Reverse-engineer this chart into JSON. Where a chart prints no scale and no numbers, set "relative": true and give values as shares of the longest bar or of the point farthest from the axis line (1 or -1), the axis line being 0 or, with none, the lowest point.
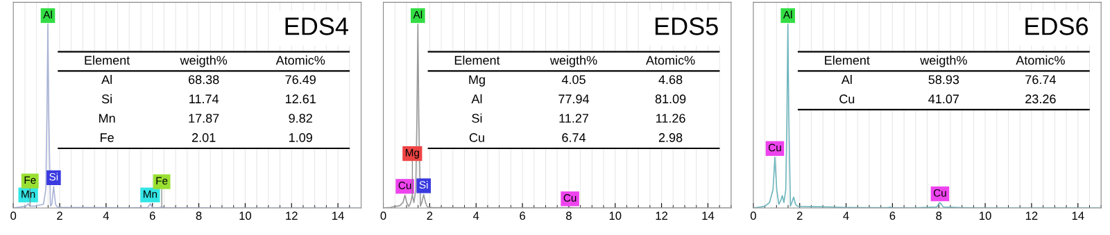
{
  "chart_data": [
    {
      "type": "line",
      "title": "EDS4",
      "relative": true,
      "grid": true,
      "tick_labels": "x",
      "xlim": [
        0,
        15
      ],
      "xticks": [
        0,
        2,
        4,
        6,
        8,
        10,
        12,
        14
      ],
      "x": [
        0,
        0.3,
        0.55,
        0.64,
        0.72,
        0.9,
        1.1,
        1.3,
        1.4,
        1.45,
        1.49,
        1.53,
        1.6,
        1.66,
        1.74,
        1.82,
        1.9,
        2.1,
        3,
        4,
        5,
        5.8,
        5.9,
        6.0,
        6.3,
        6.4,
        6.5,
        7,
        8,
        9,
        10,
        11,
        12,
        13,
        14,
        15
      ],
      "series": [
        {
          "color": "#a9b3d6",
          "values": [
            0,
            0.005,
            0.01,
            0.023,
            0.01,
            0.01,
            0.015,
            0.02,
            0.1,
            0.5,
            1,
            0.5,
            0.01,
            0.02,
            0.117,
            0.02,
            0.005,
            0.003,
            0.003,
            0.002,
            0.001,
            0.003,
            0.023,
            0.003,
            0.002,
            0.006,
            0.002,
            0.001,
            0.001,
            0,
            0,
            0,
            0,
            0,
            0,
            0
          ]
        }
      ],
      "annotations": [
        "Element",
        "weigth%",
        "Atomic%",
        "Al",
        "68.38",
        "76.49",
        "Si",
        "11.74",
        "12.61",
        "Mn",
        "17.87",
        "9.82",
        "Fe",
        "2.01",
        "1.09",
        {
          "text": "Al",
          "x": 1.49,
          "y": 1
        },
        {
          "text": "Si",
          "x": 1.74,
          "y": 0.117
        },
        {
          "text": "Mn",
          "x": 0.64,
          "y": 0.023
        },
        {
          "text": "Fe",
          "x": 0.72,
          "y": 0.01
        },
        {
          "text": "Mn",
          "x": 5.9,
          "y": 0.023
        },
        {
          "text": "Fe",
          "x": 6.4,
          "y": 0.006
        }
      ]
    },
    {
      "type": "line",
      "title": "EDS5",
      "relative": true,
      "grid": true,
      "tick_labels": "x",
      "xlim": [
        0,
        15
      ],
      "xticks": [
        0,
        2,
        4,
        6,
        8,
        10,
        12,
        14
      ],
      "x": [
        0,
        0.3,
        0.5,
        0.7,
        0.85,
        0.93,
        1.01,
        1.1,
        1.18,
        1.25,
        1.32,
        1.4,
        1.45,
        1.49,
        1.53,
        1.6,
        1.66,
        1.74,
        1.82,
        1.9,
        2.1,
        3,
        4,
        5,
        6,
        7,
        7.9,
        8.05,
        8.2,
        9,
        10,
        11,
        12,
        13,
        14,
        15
      ],
      "series": [
        {
          "color": "#9a9a9a",
          "values": [
            0,
            0.003,
            0.008,
            0.012,
            0.03,
            0.07,
            0.03,
            0.008,
            0.03,
            0.07,
            0.03,
            0.1,
            0.5,
            1,
            0.5,
            0.01,
            0.03,
            0.073,
            0.03,
            0.005,
            0.003,
            0.002,
            0.001,
            0.001,
            0.001,
            0.001,
            0.001,
            0.002,
            0.001,
            0,
            0,
            0,
            0,
            0,
            0,
            0
          ]
        }
      ],
      "annotations": [
        "Element",
        "weigth%",
        "Atomic%",
        "Mg",
        "4.05",
        "4.68",
        "Al",
        "77.94",
        "81.09",
        "Si",
        "11.27",
        "11.26",
        "Cu",
        "6.74",
        "2.98",
        {
          "text": "Al",
          "x": 1.49,
          "y": 1
        },
        {
          "text": "Cu",
          "x": 0.93,
          "y": 0.07
        },
        {
          "text": "Si",
          "x": 1.74,
          "y": 0.073
        },
        {
          "text": "Mg",
          "x": 1.25,
          "y": 0.07
        },
        {
          "text": "Cu",
          "x": 8.05,
          "y": 0.002
        }
      ]
    },
    {
      "type": "line",
      "title": "EDS6",
      "relative": true,
      "grid": true,
      "tick_labels": "x",
      "xlim": [
        0,
        15
      ],
      "xticks": [
        0,
        2,
        4,
        6,
        8,
        10,
        12,
        14
      ],
      "x": [
        0,
        0.3,
        0.5,
        0.7,
        0.85,
        0.93,
        1.01,
        1.1,
        1.18,
        1.25,
        1.32,
        1.4,
        1.45,
        1.49,
        1.53,
        1.6,
        1.66,
        1.74,
        1.82,
        1.9,
        2.1,
        3,
        4,
        5,
        5.8,
        5.9,
        6.0,
        7,
        7.9,
        8.05,
        8.2,
        9,
        10,
        11,
        12,
        13,
        14,
        15
      ],
      "series": [
        {
          "color": "#6fb6be",
          "values": [
            0,
            0.005,
            0.01,
            0.03,
            0.1,
            0.276,
            0.1,
            0.02,
            0.04,
            0.067,
            0.03,
            0.1,
            0.5,
            1,
            0.5,
            0.01,
            0.03,
            0.059,
            0.02,
            0.01,
            0.008,
            0.006,
            0.003,
            0.002,
            0.002,
            0.005,
            0.002,
            0.001,
            0.005,
            0.029,
            0.005,
            0.002,
            0,
            0,
            0,
            0,
            0,
            0
          ]
        }
      ],
      "annotations": [
        "Element",
        "weigth%",
        "Atomic%",
        "Al",
        "58.93",
        "76.74",
        "Cu",
        "41.07",
        "23.26",
        {
          "text": "Al",
          "x": 1.49,
          "y": 1
        },
        {
          "text": "Cu",
          "x": 0.93,
          "y": 0.276
        },
        {
          "text": "Cu",
          "x": 8.05,
          "y": 0.029
        }
      ]
    }
  ]
}
